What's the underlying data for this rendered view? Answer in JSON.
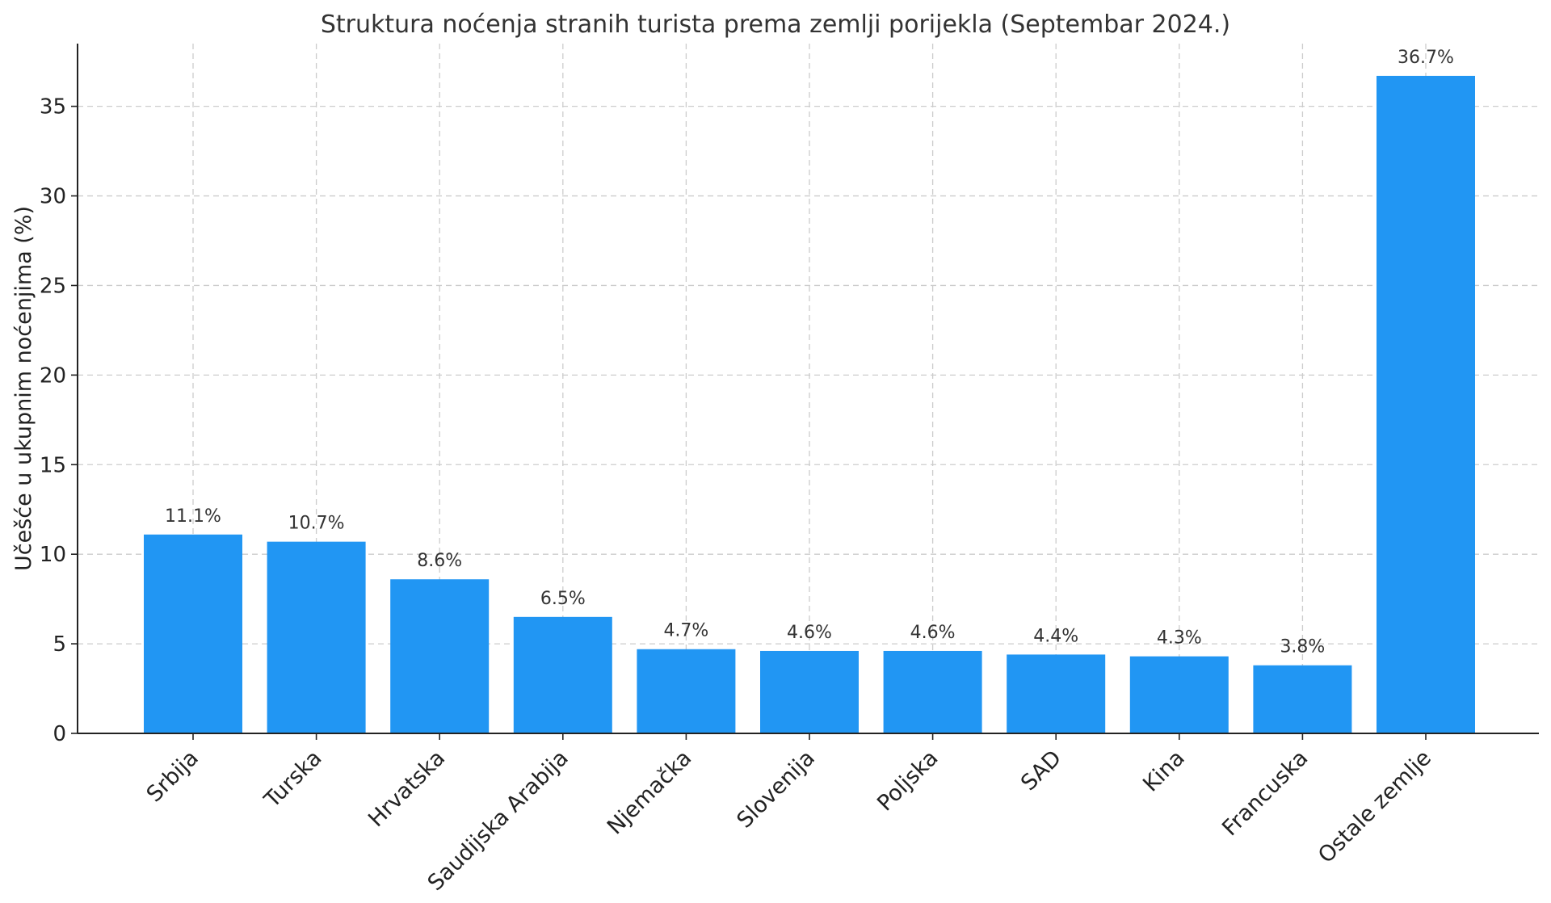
{
  "chart_data": {
    "type": "bar",
    "title": "Struktura noćenja stranih turista prema zemlji porijekla (Septembar 2024.)",
    "xlabel": "",
    "ylabel": "Učešće u ukupnim noćenjima (%)",
    "categories": [
      "Srbija",
      "Turska",
      "Hrvatska",
      "Saudijska Arabija",
      "Njemačka",
      "Slovenija",
      "Poljska",
      "SAD",
      "Kina",
      "Francuska",
      "Ostale zemlje"
    ],
    "values": [
      11.1,
      10.7,
      8.6,
      6.5,
      4.7,
      4.6,
      4.6,
      4.4,
      4.3,
      3.8,
      36.7
    ],
    "data_labels": [
      "11.1%",
      "10.7%",
      "8.6%",
      "6.5%",
      "4.7%",
      "4.6%",
      "4.6%",
      "4.4%",
      "4.3%",
      "3.8%",
      "36.7%"
    ],
    "ylim": [
      0,
      38.5
    ],
    "yticks": [
      0,
      5,
      10,
      15,
      20,
      25,
      30,
      35
    ],
    "grid": true,
    "bar_color": "#2196f3"
  }
}
